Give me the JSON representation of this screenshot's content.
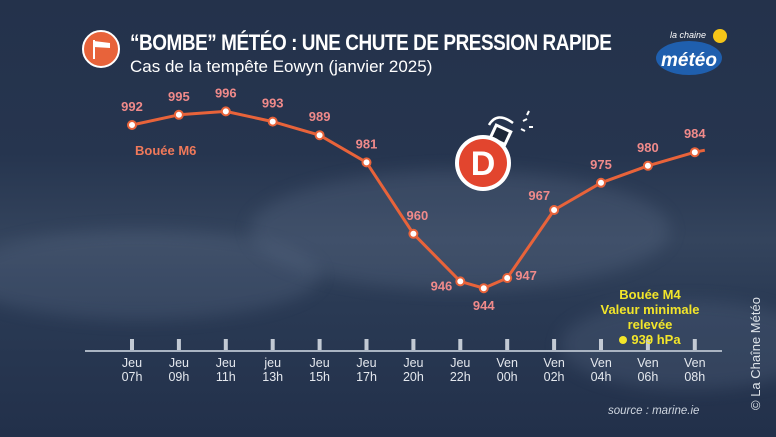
{
  "header": {
    "title": "“BOMBE” MÉTÉO : UNE CHUTE DE PRESSION RAPIDE",
    "subtitle": "Cas de la tempête Eowyn (janvier 2025)",
    "logo_text_top": "la chaine",
    "logo_text_main": "météo"
  },
  "chart_data": {
    "type": "line",
    "x_ticks": [
      {
        "day": "Jeu",
        "hour": "07h",
        "t": 7
      },
      {
        "day": "Jeu",
        "hour": "09h",
        "t": 9
      },
      {
        "day": "Jeu",
        "hour": "11h",
        "t": 11
      },
      {
        "day": "jeu",
        "hour": "13h",
        "t": 13
      },
      {
        "day": "Jeu",
        "hour": "15h",
        "t": 15
      },
      {
        "day": "Jeu",
        "hour": "17h",
        "t": 17
      },
      {
        "day": "Jeu",
        "hour": "20h",
        "t": 20
      },
      {
        "day": "Jeu",
        "hour": "22h",
        "t": 22
      },
      {
        "day": "Ven",
        "hour": "00h",
        "t": 24
      },
      {
        "day": "Ven",
        "hour": "02h",
        "t": 26
      },
      {
        "day": "Ven",
        "hour": "04h",
        "t": 28
      },
      {
        "day": "Ven",
        "hour": "06h",
        "t": 30
      },
      {
        "day": "Ven",
        "hour": "08h",
        "t": 32
      }
    ],
    "series": [
      {
        "name": "Bouée M6",
        "points": [
          {
            "t": 7,
            "value": 992
          },
          {
            "t": 9,
            "value": 995
          },
          {
            "t": 11,
            "value": 996
          },
          {
            "t": 13,
            "value": 993
          },
          {
            "t": 15,
            "value": 989
          },
          {
            "t": 17,
            "value": 981
          },
          {
            "t": 20,
            "value": 960
          },
          {
            "t": 22,
            "value": 946
          },
          {
            "t": 23,
            "value": 944
          },
          {
            "t": 24,
            "value": 947
          },
          {
            "t": 26,
            "value": 967
          },
          {
            "t": 28,
            "value": 975
          },
          {
            "t": 30,
            "value": 980
          },
          {
            "t": 32,
            "value": 984
          }
        ]
      }
    ],
    "unit": "hPa",
    "color": "#e8633a",
    "annotation": {
      "line1": "Bouée M4",
      "line2": "Valeur minimale",
      "line3": "relevée",
      "value": "939 hPa"
    },
    "symbol": {
      "letter": "D",
      "icon": "bomb-icon"
    }
  },
  "footer": {
    "source": "source : marine.ie",
    "copyright": "©  La Chaîne Météo"
  }
}
